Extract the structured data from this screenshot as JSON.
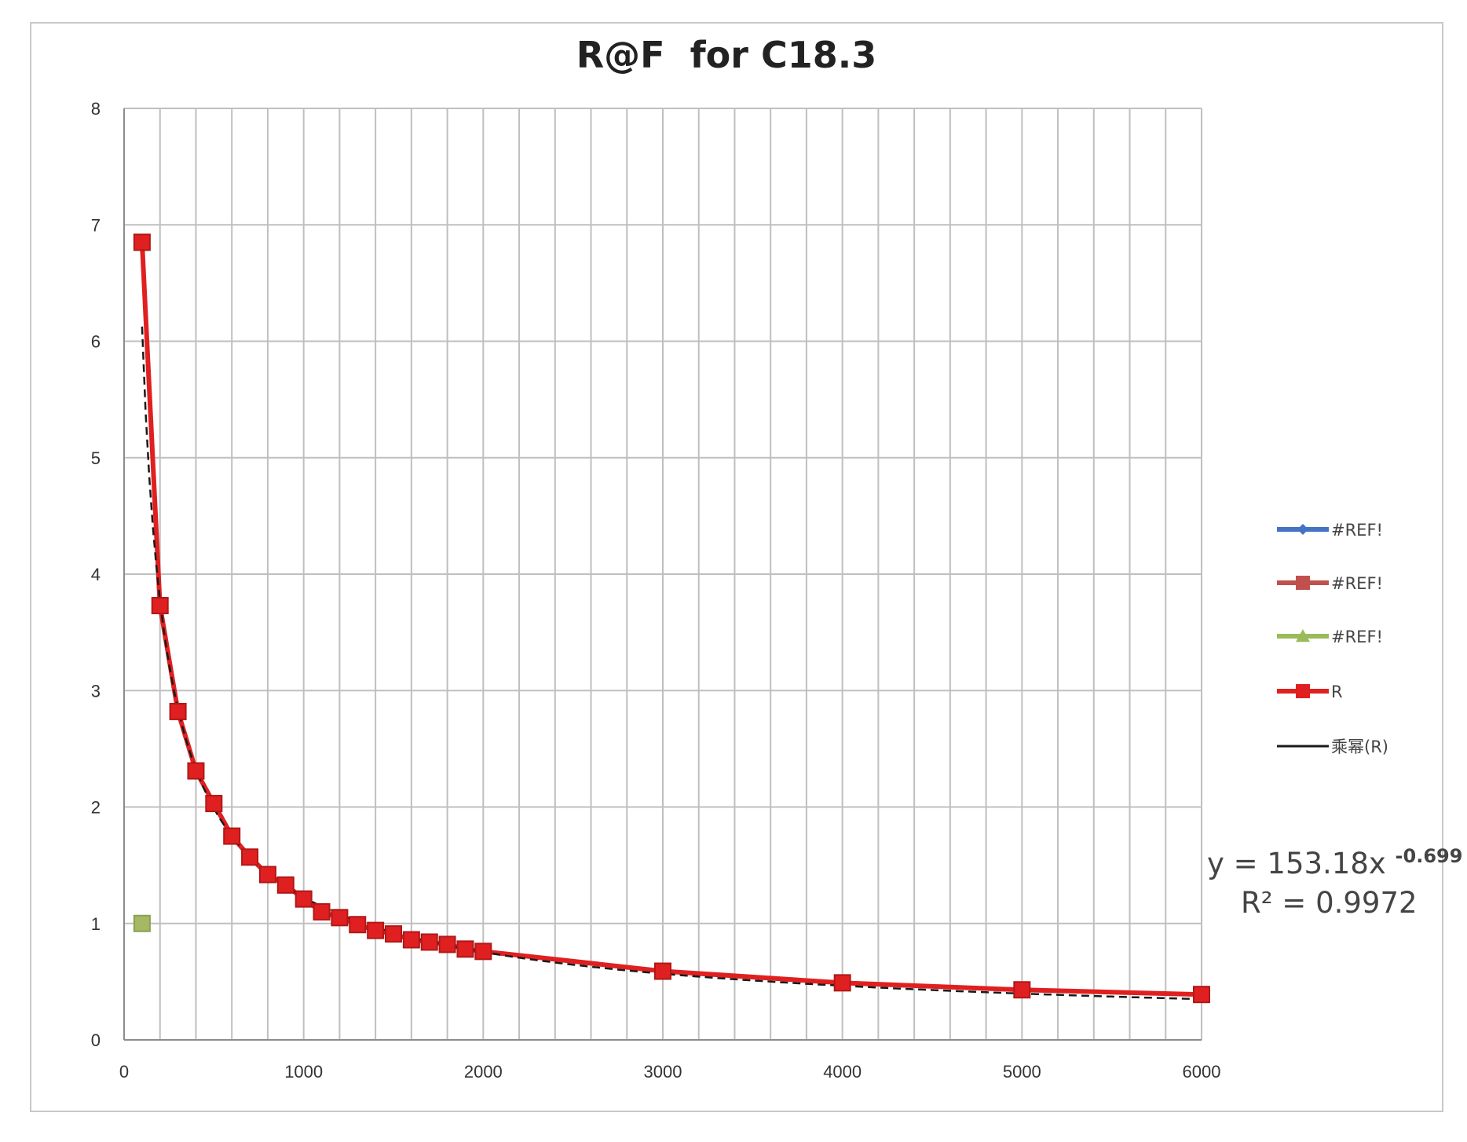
{
  "chart_data": {
    "type": "scatter",
    "title": "R@F  for C18.3",
    "xlabel": "",
    "ylabel": "",
    "xlim": [
      0,
      6000
    ],
    "ylim": [
      0,
      8
    ],
    "x_ticks": [
      "0",
      "1000",
      "2000",
      "3000",
      "4000",
      "5000",
      "6000"
    ],
    "y_ticks": [
      "0",
      "1",
      "2",
      "3",
      "4",
      "5",
      "6",
      "7",
      "8"
    ],
    "x_grid_step": 200,
    "y_grid_step": 1,
    "grid": true,
    "legend_position": "right",
    "series": [
      {
        "name": "#REF!",
        "marker": "diamond",
        "color": "#4472c4",
        "points": []
      },
      {
        "name": "#REF!",
        "marker": "square",
        "color": "#c0504d",
        "points": []
      },
      {
        "name": "#REF!",
        "marker": "triangle",
        "color": "#9bbb59",
        "points": [
          [
            100,
            1.0
          ]
        ]
      },
      {
        "name": "R",
        "marker": "square",
        "color": "#e02020",
        "points": [
          [
            100,
            6.85
          ],
          [
            200,
            3.73
          ],
          [
            300,
            2.82
          ],
          [
            400,
            2.31
          ],
          [
            500,
            2.03
          ],
          [
            600,
            1.75
          ],
          [
            700,
            1.57
          ],
          [
            800,
            1.42
          ],
          [
            900,
            1.33
          ],
          [
            1000,
            1.21
          ],
          [
            1100,
            1.1
          ],
          [
            1200,
            1.05
          ],
          [
            1300,
            0.99
          ],
          [
            1400,
            0.94
          ],
          [
            1500,
            0.91
          ],
          [
            1600,
            0.86
          ],
          [
            1700,
            0.84
          ],
          [
            1800,
            0.82
          ],
          [
            1900,
            0.78
          ],
          [
            2000,
            0.76
          ],
          [
            3000,
            0.59
          ],
          [
            4000,
            0.49
          ],
          [
            5000,
            0.43
          ],
          [
            6000,
            0.39
          ]
        ]
      },
      {
        "name": "乘幂(R)",
        "line": true,
        "color": "#1a1a1a",
        "trendline": {
          "type": "power",
          "a": 153.18,
          "b": -0.699,
          "x_from": 100,
          "x_to": 6000
        }
      }
    ],
    "trendline_label": {
      "equation_prefix": "y = 153.18x",
      "equation_exponent": "-0.699",
      "r_squared": "R² = 0.9972"
    }
  }
}
